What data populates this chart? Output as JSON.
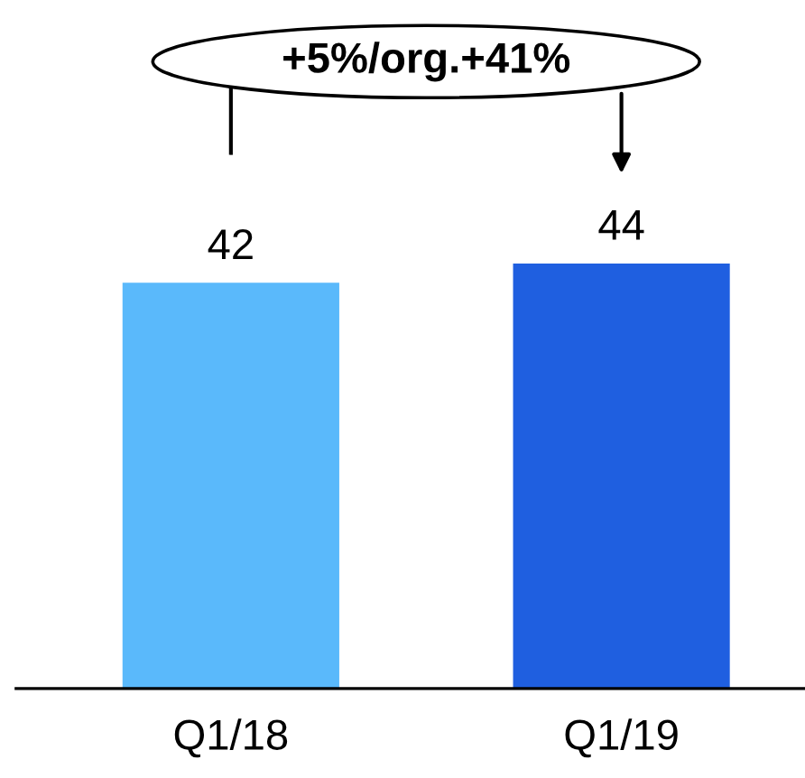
{
  "chart_data": {
    "type": "bar",
    "categories": [
      "Q1/18",
      "Q1/19"
    ],
    "values": [
      42,
      44
    ],
    "colors": [
      "#5ab9fb",
      "#1f5fe0"
    ],
    "data_labels": true,
    "annotations": [
      "+5%/org.+41%"
    ]
  }
}
